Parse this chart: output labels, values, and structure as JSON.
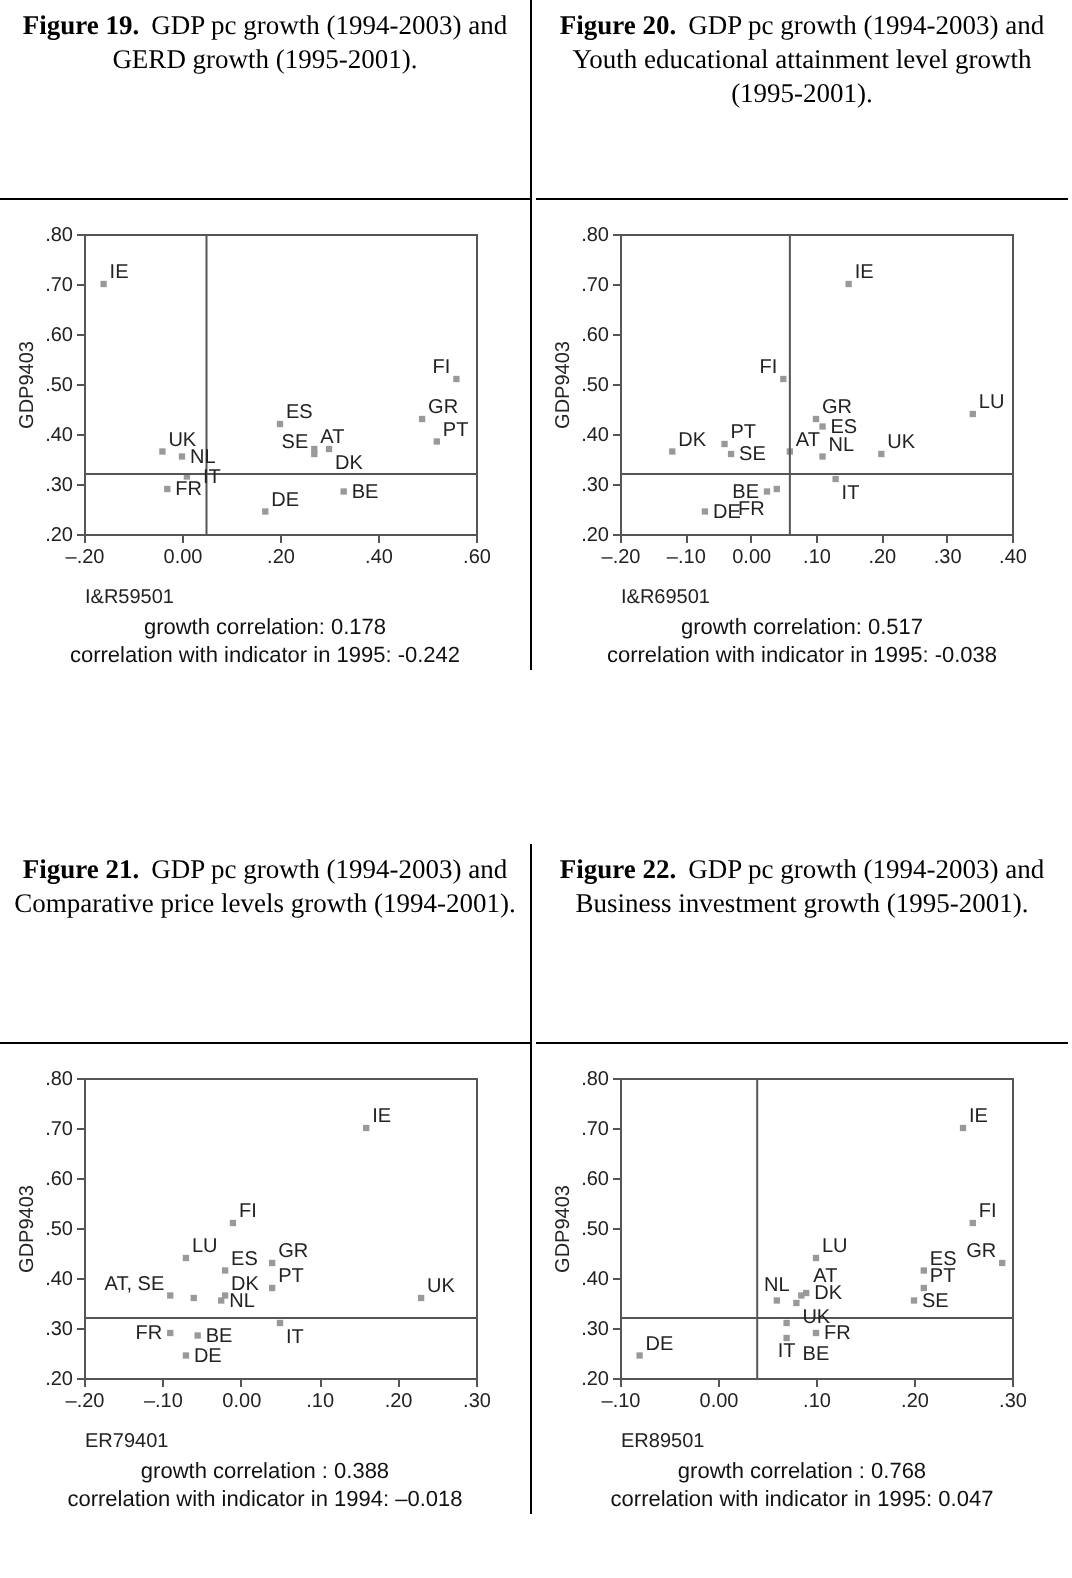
{
  "chart_data": [
    {
      "type": "scatter",
      "title": "Figure 19.",
      "subtitle": "GDP pc growth (1994-2003) and GERD growth (1995-2001).",
      "xlabel": "I&R59501",
      "ylabel": "GDP9403",
      "marker": "square",
      "grid": false,
      "series": [
        {
          "color": "#999999",
          "x": [
            -0.16,
            -0.04,
            0.0,
            -0.03,
            0.01,
            0.2,
            0.27,
            0.27,
            0.3,
            0.17,
            0.33,
            0.49,
            0.52,
            0.56
          ],
          "values": [
            0.7,
            0.365,
            0.355,
            0.29,
            0.315,
            0.42,
            0.37,
            0.36,
            0.37,
            0.245,
            0.285,
            0.43,
            0.385,
            0.51
          ]
        }
      ],
      "xlim": [
        -0.2,
        0.6
      ],
      "xticks": [
        {
          "value": -0.2,
          "label": "–.20"
        },
        {
          "value": 0,
          "label": "0.00"
        },
        {
          "value": 0.2,
          "label": ".20"
        },
        {
          "value": 0.4,
          "label": ".40"
        },
        {
          "value": 0.6,
          "label": ".60"
        }
      ],
      "ylim": [
        0.2,
        0.8
      ],
      "yticks": [
        {
          "value": 0.2,
          "label": ".20"
        },
        {
          "value": 0.3,
          "label": ".30"
        },
        {
          "value": 0.4,
          "label": ".40"
        },
        {
          "value": 0.5,
          "label": ".50"
        },
        {
          "value": 0.6,
          "label": ".60"
        },
        {
          "value": 0.7,
          "label": ".70"
        },
        {
          "value": 0.8,
          "label": ".80"
        }
      ],
      "ref_lines": [
        {
          "axis": "y",
          "value": 0.32
        },
        {
          "axis": "x",
          "value": 0.05
        }
      ],
      "annotations": [
        {
          "text": "IE",
          "x": -0.16,
          "y": 0.7
        },
        {
          "text": "UK",
          "x": -0.04,
          "y": 0.365
        },
        {
          "text": "NL",
          "x": 0.0,
          "y": 0.355
        },
        {
          "text": "FR",
          "x": -0.03,
          "y": 0.29
        },
        {
          "text": "IT",
          "x": 0.01,
          "y": 0.315
        },
        {
          "text": "ES",
          "x": 0.2,
          "y": 0.42
        },
        {
          "text": "AT",
          "x": 0.27,
          "y": 0.37
        },
        {
          "text": "SE",
          "x": 0.27,
          "y": 0.36
        },
        {
          "text": "DK",
          "x": 0.3,
          "y": 0.37
        },
        {
          "text": "DE",
          "x": 0.17,
          "y": 0.245
        },
        {
          "text": "BE",
          "x": 0.33,
          "y": 0.285
        },
        {
          "text": "GR",
          "x": 0.49,
          "y": 0.43
        },
        {
          "text": "PT",
          "x": 0.52,
          "y": 0.385
        },
        {
          "text": "FI",
          "x": 0.56,
          "y": 0.51
        },
        "growth correlation: 0.178",
        "correlation with indicator in 1995: -0.242"
      ]
    },
    {
      "type": "scatter",
      "title": "Figure 20.",
      "subtitle": "GDP pc growth (1994-2003) and Youth educational attainment level growth (1995-2001).",
      "xlabel": "I&R69501",
      "ylabel": "GDP9403",
      "marker": "square",
      "grid": false,
      "series": [
        {
          "color": "#999999",
          "x": [
            0.15,
            0.05,
            0.1,
            0.11,
            0.34,
            -0.12,
            -0.04,
            -0.03,
            0.06,
            0.11,
            0.2,
            0.13,
            0.04,
            0.025,
            -0.07
          ],
          "values": [
            0.7,
            0.51,
            0.43,
            0.415,
            0.44,
            0.365,
            0.38,
            0.36,
            0.365,
            0.355,
            0.36,
            0.31,
            0.29,
            0.285,
            0.245
          ]
        }
      ],
      "xlim": [
        -0.2,
        0.4
      ],
      "xticks": [
        {
          "value": -0.2,
          "label": "–.20"
        },
        {
          "value": -0.1,
          "label": "–.10"
        },
        {
          "value": 0,
          "label": "0.00"
        },
        {
          "value": 0.1,
          "label": ".10"
        },
        {
          "value": 0.2,
          "label": ".20"
        },
        {
          "value": 0.3,
          "label": ".30"
        },
        {
          "value": 0.4,
          "label": ".40"
        }
      ],
      "ylim": [
        0.2,
        0.8
      ],
      "yticks": [
        {
          "value": 0.2,
          "label": ".20"
        },
        {
          "value": 0.3,
          "label": ".30"
        },
        {
          "value": 0.4,
          "label": ".40"
        },
        {
          "value": 0.5,
          "label": ".50"
        },
        {
          "value": 0.6,
          "label": ".60"
        },
        {
          "value": 0.7,
          "label": ".70"
        },
        {
          "value": 0.8,
          "label": ".80"
        }
      ],
      "ref_lines": [
        {
          "axis": "y",
          "value": 0.32
        },
        {
          "axis": "x",
          "value": 0.06
        }
      ],
      "annotations": [
        {
          "text": "IE",
          "x": 0.15,
          "y": 0.7
        },
        {
          "text": "FI",
          "x": 0.05,
          "y": 0.51
        },
        {
          "text": "GR",
          "x": 0.1,
          "y": 0.43
        },
        {
          "text": "ES",
          "x": 0.11,
          "y": 0.415
        },
        {
          "text": "LU",
          "x": 0.34,
          "y": 0.44
        },
        {
          "text": "DK",
          "x": -0.12,
          "y": 0.365
        },
        {
          "text": "PT",
          "x": -0.04,
          "y": 0.38
        },
        {
          "text": "SE",
          "x": -0.03,
          "y": 0.36
        },
        {
          "text": "AT",
          "x": 0.06,
          "y": 0.365
        },
        {
          "text": "NL",
          "x": 0.11,
          "y": 0.355
        },
        {
          "text": "UK",
          "x": 0.2,
          "y": 0.36
        },
        {
          "text": "IT",
          "x": 0.13,
          "y": 0.31
        },
        {
          "text": "FR",
          "x": 0.04,
          "y": 0.29
        },
        {
          "text": "BE",
          "x": 0.025,
          "y": 0.285
        },
        {
          "text": "DE",
          "x": -0.07,
          "y": 0.245
        },
        "growth correlation: 0.517",
        "correlation with indicator in 1995: -0.038"
      ]
    },
    {
      "type": "scatter",
      "title": "Figure 21.",
      "subtitle": "GDP pc growth (1994-2003) and Comparative price levels growth (1994-2001).",
      "xlabel": "ER79401",
      "ylabel": "GDP9403",
      "marker": "square",
      "grid": false,
      "series": [
        {
          "color": "#999999",
          "x": [
            0.16,
            0.23,
            -0.01,
            -0.07,
            -0.02,
            0.04,
            0.04,
            -0.02,
            -0.025,
            0.05,
            -0.09,
            -0.06,
            -0.09,
            -0.055,
            -0.07
          ],
          "values": [
            0.7,
            0.36,
            0.51,
            0.44,
            0.415,
            0.43,
            0.38,
            0.365,
            0.355,
            0.31,
            0.365,
            0.36,
            0.29,
            0.285,
            0.245
          ]
        }
      ],
      "xlim": [
        -0.2,
        0.3
      ],
      "xticks": [
        {
          "value": -0.2,
          "label": "–.20"
        },
        {
          "value": -0.1,
          "label": "–.10"
        },
        {
          "value": 0,
          "label": "0.00"
        },
        {
          "value": 0.1,
          "label": ".10"
        },
        {
          "value": 0.2,
          "label": ".20"
        },
        {
          "value": 0.3,
          "label": ".30"
        }
      ],
      "ylim": [
        0.2,
        0.8
      ],
      "yticks": [
        {
          "value": 0.2,
          "label": ".20"
        },
        {
          "value": 0.3,
          "label": ".30"
        },
        {
          "value": 0.4,
          "label": ".40"
        },
        {
          "value": 0.5,
          "label": ".50"
        },
        {
          "value": 0.6,
          "label": ".60"
        },
        {
          "value": 0.7,
          "label": ".70"
        },
        {
          "value": 0.8,
          "label": ".80"
        }
      ],
      "ref_lines": [
        {
          "axis": "y",
          "value": 0.32
        }
      ],
      "annotations": [
        {
          "text": "IE",
          "x": 0.16,
          "y": 0.7
        },
        {
          "text": "UK",
          "x": 0.23,
          "y": 0.36
        },
        {
          "text": "FI",
          "x": -0.01,
          "y": 0.51
        },
        {
          "text": "LU",
          "x": -0.07,
          "y": 0.44
        },
        {
          "text": "ES",
          "x": -0.02,
          "y": 0.415
        },
        {
          "text": "GR",
          "x": 0.04,
          "y": 0.43
        },
        {
          "text": "PT",
          "x": 0.04,
          "y": 0.38
        },
        {
          "text": "DK",
          "x": -0.02,
          "y": 0.365
        },
        {
          "text": "NL",
          "x": -0.025,
          "y": 0.355
        },
        {
          "text": "IT",
          "x": 0.05,
          "y": 0.31
        },
        {
          "text": "AT, SE",
          "x": -0.09,
          "y": 0.365
        },
        {
          "text": "FR",
          "x": -0.09,
          "y": 0.29
        },
        {
          "text": "BE",
          "x": -0.055,
          "y": 0.285
        },
        {
          "text": "DE",
          "x": -0.07,
          "y": 0.245
        },
        "growth correlation : 0.388",
        "correlation with indicator in 1994: –0.018"
      ]
    },
    {
      "type": "scatter",
      "title": "Figure 22.",
      "subtitle": "GDP pc growth (1994-2003) and Business investment growth (1995-2001).",
      "xlabel": "ER89501",
      "ylabel": "GDP9403",
      "marker": "square",
      "grid": false,
      "series": [
        {
          "color": "#999999",
          "x": [
            0.25,
            0.26,
            0.29,
            0.21,
            0.21,
            0.2,
            0.1,
            0.06,
            0.085,
            0.09,
            0.08,
            0.07,
            0.07,
            0.1,
            -0.08
          ],
          "values": [
            0.7,
            0.51,
            0.43,
            0.415,
            0.38,
            0.355,
            0.44,
            0.355,
            0.365,
            0.37,
            0.35,
            0.31,
            0.28,
            0.29,
            0.245
          ]
        }
      ],
      "xlim": [
        -0.1,
        0.3
      ],
      "xticks": [
        {
          "value": -0.1,
          "label": "–.10"
        },
        {
          "value": 0,
          "label": "0.00"
        },
        {
          "value": 0.1,
          "label": ".10"
        },
        {
          "value": 0.2,
          "label": ".20"
        },
        {
          "value": 0.3,
          "label": ".30"
        }
      ],
      "ylim": [
        0.2,
        0.8
      ],
      "yticks": [
        {
          "value": 0.2,
          "label": ".20"
        },
        {
          "value": 0.3,
          "label": ".30"
        },
        {
          "value": 0.4,
          "label": ".40"
        },
        {
          "value": 0.5,
          "label": ".50"
        },
        {
          "value": 0.6,
          "label": ".60"
        },
        {
          "value": 0.7,
          "label": ".70"
        },
        {
          "value": 0.8,
          "label": ".80"
        }
      ],
      "ref_lines": [
        {
          "axis": "y",
          "value": 0.32
        },
        {
          "axis": "x",
          "value": 0.04
        }
      ],
      "annotations": [
        {
          "text": "IE",
          "x": 0.25,
          "y": 0.7
        },
        {
          "text": "FI",
          "x": 0.26,
          "y": 0.51
        },
        {
          "text": "GR",
          "x": 0.29,
          "y": 0.43
        },
        {
          "text": "ES",
          "x": 0.21,
          "y": 0.415
        },
        {
          "text": "PT",
          "x": 0.21,
          "y": 0.38
        },
        {
          "text": "SE",
          "x": 0.2,
          "y": 0.355
        },
        {
          "text": "LU",
          "x": 0.1,
          "y": 0.44
        },
        {
          "text": "NL",
          "x": 0.06,
          "y": 0.355
        },
        {
          "text": "AT",
          "x": 0.085,
          "y": 0.365
        },
        {
          "text": "DK",
          "x": 0.09,
          "y": 0.37
        },
        {
          "text": "UK",
          "x": 0.08,
          "y": 0.35
        },
        {
          "text": "IT",
          "x": 0.07,
          "y": 0.31
        },
        {
          "text": "BE",
          "x": 0.07,
          "y": 0.28
        },
        {
          "text": "FR",
          "x": 0.1,
          "y": 0.29
        },
        {
          "text": "DE",
          "x": -0.08,
          "y": 0.245
        },
        "growth correlation : 0.768",
        "correlation with indicator in 1995: 0.047"
      ]
    }
  ]
}
